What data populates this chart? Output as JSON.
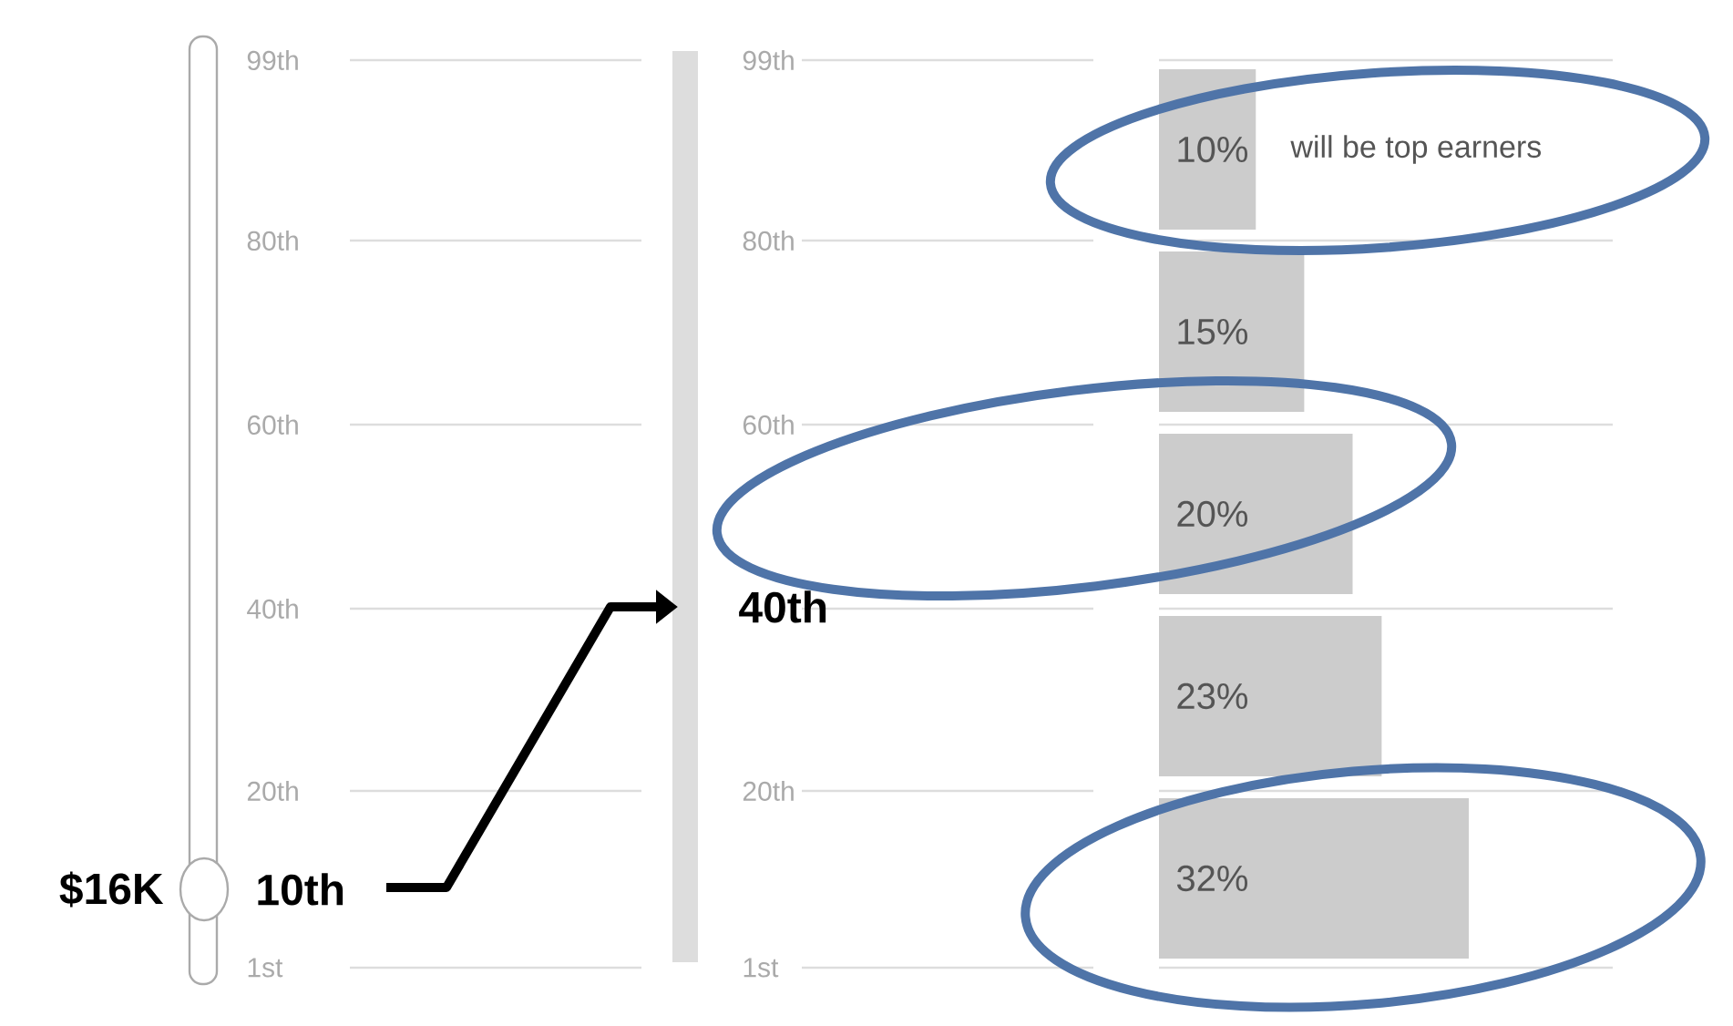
{
  "chart_data": {
    "type": "bar",
    "orientation": "horizontal",
    "categories": [
      null,
      null,
      null,
      null,
      null
    ],
    "values": [
      10,
      15,
      20,
      23,
      32
    ],
    "value_labels": [
      "10%",
      "15%",
      "20%",
      "23%",
      "32%"
    ],
    "color": "#cccccc",
    "tick_labels": false,
    "annotations": [
      "will be top earners",
      "99th",
      "80th",
      "60th",
      "40th",
      "20th",
      "1st",
      "$16K",
      "10th",
      "40th"
    ]
  }
}
